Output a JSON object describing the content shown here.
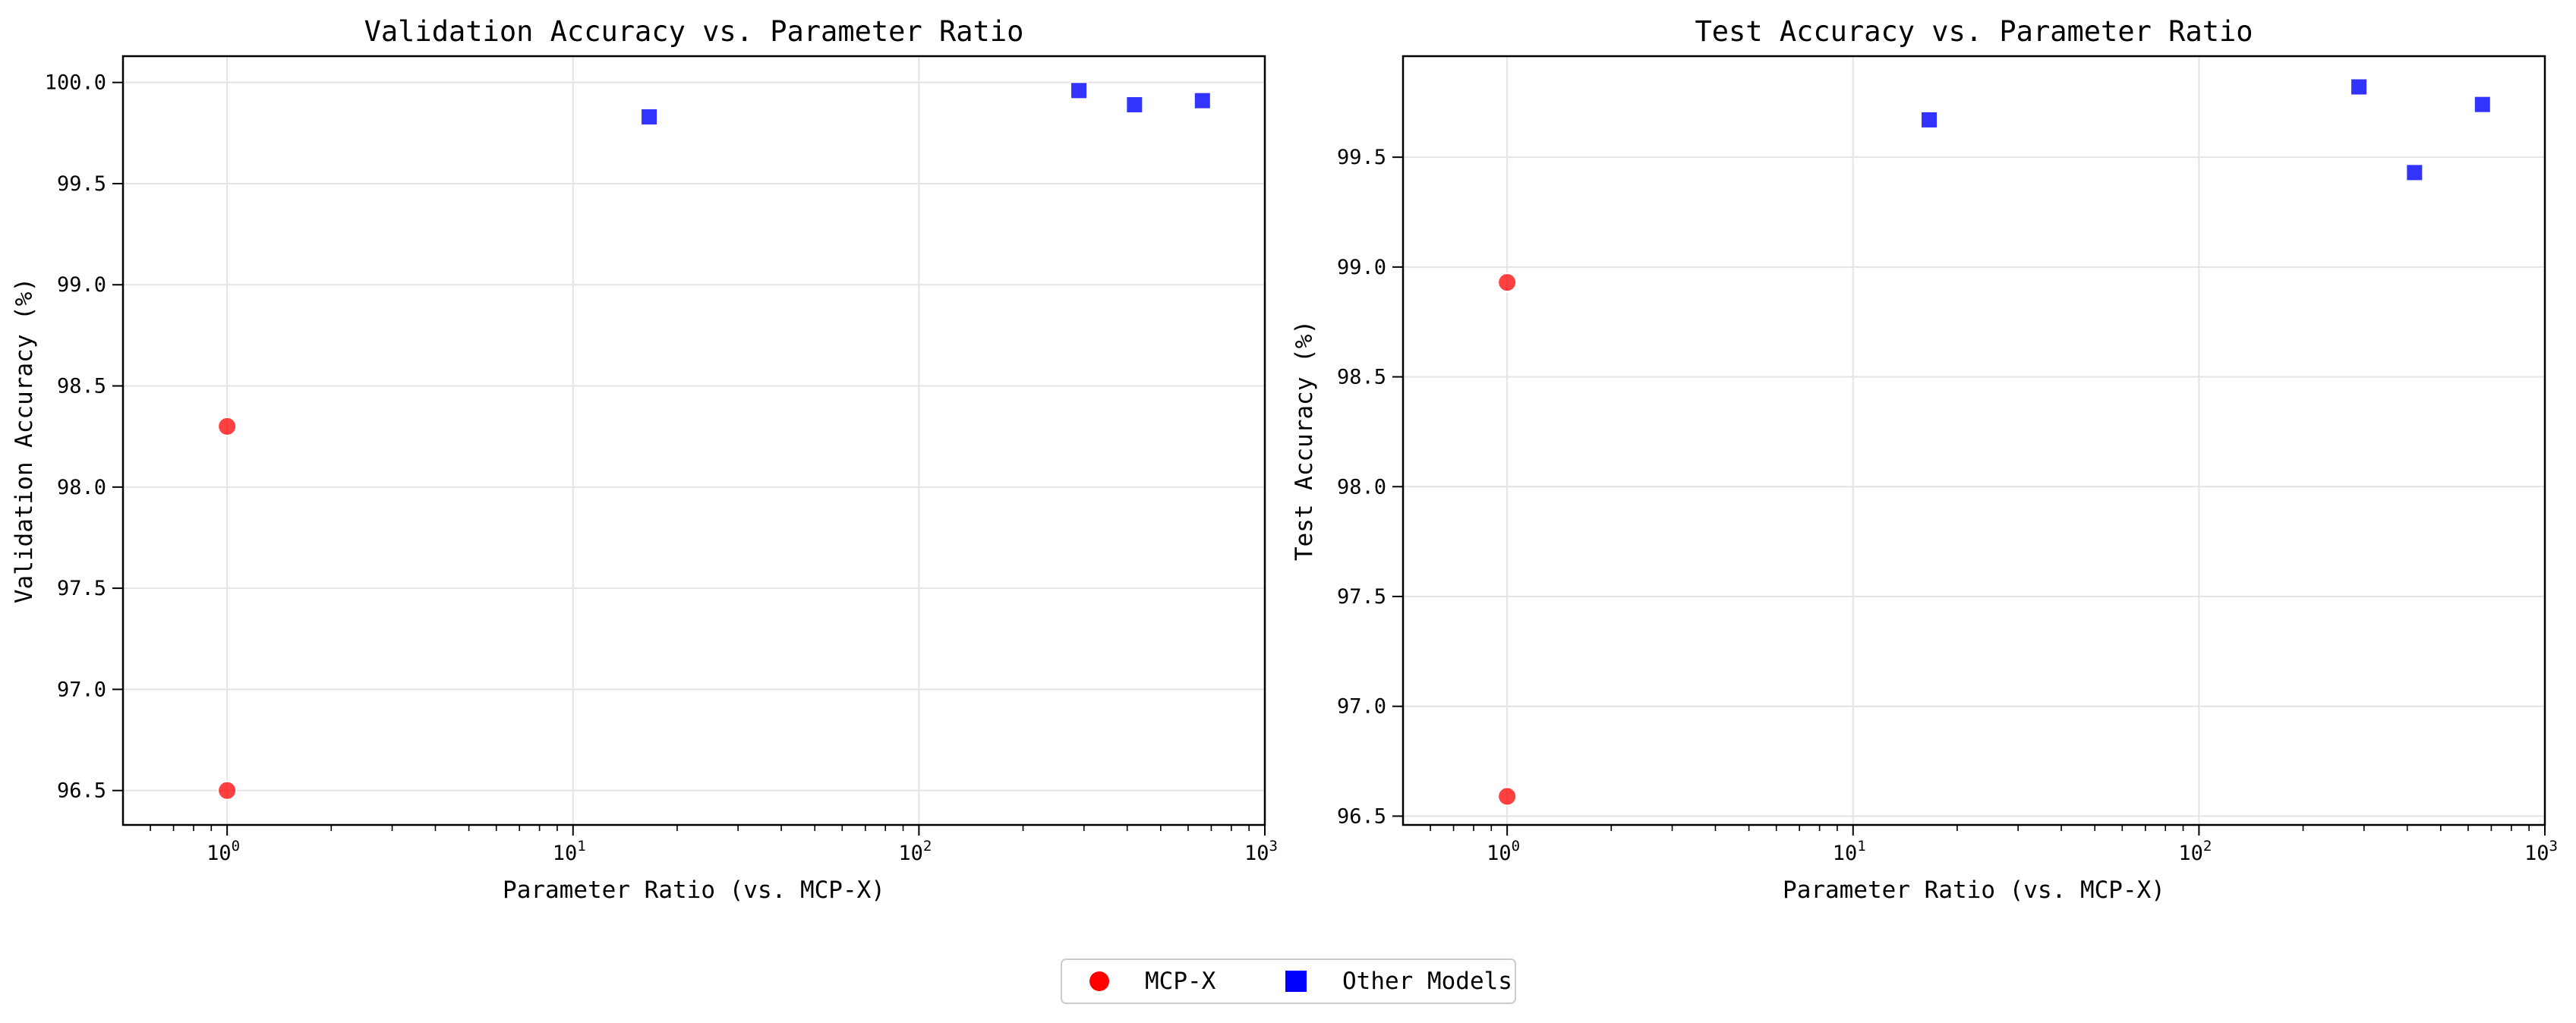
{
  "chart_data": [
    {
      "type": "scatter",
      "title": "Validation Accuracy vs. Parameter Ratio",
      "xlabel": "Parameter Ratio (vs. MCP-X)",
      "ylabel": "Validation Accuracy (%)",
      "xscale": "log",
      "xlim": [
        0.5,
        1000
      ],
      "ylim": [
        96.33,
        100.13
      ],
      "yticks": [
        "96.5",
        "97.0",
        "97.5",
        "98.0",
        "98.5",
        "99.0",
        "99.5",
        "100.0"
      ],
      "xticks": [
        {
          "base": "10",
          "exp": "0"
        },
        {
          "base": "10",
          "exp": "1"
        },
        {
          "base": "10",
          "exp": "2"
        },
        {
          "base": "10",
          "exp": "3"
        }
      ],
      "grid": true,
      "series": [
        {
          "name": "MCP-X",
          "marker": "circle",
          "color": "#ff0000",
          "points": [
            {
              "x": 1,
              "y": 98.3
            },
            {
              "x": 1,
              "y": 96.5
            }
          ]
        },
        {
          "name": "Other Models",
          "marker": "square",
          "color": "#0000ff",
          "points": [
            {
              "x": 16.6,
              "y": 99.83
            },
            {
              "x": 290,
              "y": 99.96
            },
            {
              "x": 420,
              "y": 99.89
            },
            {
              "x": 660,
              "y": 99.91
            }
          ]
        }
      ]
    },
    {
      "type": "scatter",
      "title": "Test Accuracy vs. Parameter Ratio",
      "xlabel": "Parameter Ratio (vs. MCP-X)",
      "ylabel": "Test Accuracy (%)",
      "xscale": "log",
      "xlim": [
        0.5,
        1000
      ],
      "ylim": [
        96.46,
        99.96
      ],
      "yticks": [
        "96.5",
        "97.0",
        "97.5",
        "98.0",
        "98.5",
        "99.0",
        "99.5"
      ],
      "xticks": [
        {
          "base": "10",
          "exp": "0"
        },
        {
          "base": "10",
          "exp": "1"
        },
        {
          "base": "10",
          "exp": "2"
        },
        {
          "base": "10",
          "exp": "3"
        }
      ],
      "grid": true,
      "series": [
        {
          "name": "MCP-X",
          "marker": "circle",
          "color": "#ff0000",
          "points": [
            {
              "x": 1,
              "y": 98.93
            },
            {
              "x": 1,
              "y": 96.59
            }
          ]
        },
        {
          "name": "Other Models",
          "marker": "square",
          "color": "#0000ff",
          "points": [
            {
              "x": 16.6,
              "y": 99.67
            },
            {
              "x": 290,
              "y": 99.82
            },
            {
              "x": 420,
              "y": 99.43
            },
            {
              "x": 660,
              "y": 99.74
            }
          ]
        }
      ]
    }
  ],
  "legend": {
    "placement": "bottom-center",
    "items": [
      {
        "label": "MCP-X",
        "marker": "circle",
        "color": "#ff0000"
      },
      {
        "label": "Other Models",
        "marker": "square",
        "color": "#0000ff"
      }
    ]
  }
}
